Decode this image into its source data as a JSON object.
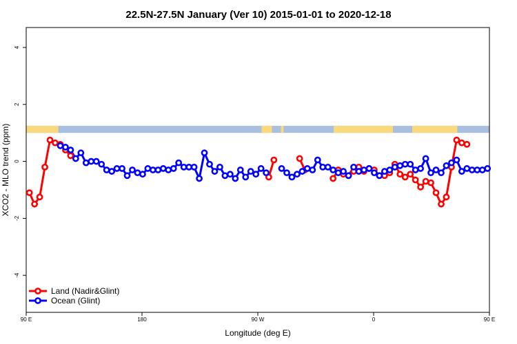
{
  "chart_data": {
    "type": "line",
    "title": "22.5N-27.5N January (Ver 10)   2015-01-01 to 2020-12-18",
    "xlabel": "Longitude (deg E)",
    "ylabel": "XCO2 - MLO trend (ppm)",
    "xlim": [
      90,
      450
    ],
    "ylim": [
      -5.3,
      4.7
    ],
    "x_ticks": [
      {
        "value": 90,
        "label": "90 E"
      },
      {
        "value": 180,
        "label": "180"
      },
      {
        "value": 270,
        "label": "90 W"
      },
      {
        "value": 360,
        "label": "0"
      },
      {
        "value": 450,
        "label": "90 E"
      }
    ],
    "y_ticks": [
      {
        "value": -4,
        "label": "-4"
      },
      {
        "value": -2,
        "label": "-2"
      },
      {
        "value": 0,
        "label": "0"
      },
      {
        "value": 2,
        "label": "2"
      },
      {
        "value": 4,
        "label": "4"
      }
    ],
    "grid": false,
    "legend_position": "bottom-left",
    "land_ocean_band": {
      "y_range": [
        1.0,
        1.25
      ],
      "ocean_color": "#a9bfe0",
      "land_color": "#f9d97c",
      "land_segments": [
        [
          90,
          115
        ],
        [
          273,
          281
        ],
        [
          288,
          290
        ],
        [
          329,
          375
        ],
        [
          390,
          425
        ]
      ]
    },
    "series": [
      {
        "name": "Land (Nadir&Glint)",
        "color": "#ff0000",
        "x": [
          92.5,
          96.5,
          100.5,
          104.5,
          108.5,
          112.5,
          116.5,
          120.5,
          124.5,
          278.5,
          282.5,
          302.5,
          306.5,
          328.5,
          332.5,
          336.5,
          340.5,
          344.5,
          348.5,
          352.5,
          356.5,
          360.5,
          364.5,
          368.5,
          372.5,
          376.5,
          380.5,
          384.5,
          388.5,
          392.5,
          396.5,
          400.5,
          404.5,
          408.5,
          412.5,
          416.5,
          420.5,
          424.5,
          428.5,
          432.5
        ],
        "values": [
          -1.1,
          -1.5,
          -1.25,
          -0.2,
          0.75,
          0.65,
          0.6,
          0.4,
          0.2,
          -0.55,
          0.05,
          0.1,
          -0.3,
          -0.6,
          -0.3,
          -0.45,
          -0.5,
          -0.35,
          -0.2,
          -0.35,
          -0.25,
          -0.3,
          -0.5,
          -0.5,
          -0.4,
          -0.1,
          -0.45,
          -0.55,
          -0.45,
          -0.65,
          -0.9,
          -0.7,
          -0.75,
          -1.1,
          -1.5,
          -1.25,
          -0.2,
          0.75,
          0.65,
          0.6
        ]
      },
      {
        "name": "Ocean (Glint)",
        "color": "#0000ff",
        "x": [
          116.5,
          120.5,
          124.5,
          128.5,
          132.5,
          136.5,
          140.5,
          144.5,
          148.5,
          152.5,
          156.5,
          160.5,
          164.5,
          168.5,
          172.5,
          176.5,
          180.5,
          184.5,
          188.5,
          192.5,
          196.5,
          200.5,
          204.5,
          208.5,
          212.5,
          216.5,
          220.5,
          224.5,
          228.5,
          232.5,
          236.5,
          240.5,
          244.5,
          248.5,
          252.5,
          256.5,
          260.5,
          264.5,
          268.5,
          272.5,
          276.5,
          288.5,
          292.5,
          296.5,
          300.5,
          304.5,
          308.5,
          312.5,
          316.5,
          320.5,
          324.5,
          328.5,
          332.5,
          336.5,
          340.5,
          344.5,
          348.5,
          352.5,
          356.5,
          360.5,
          364.5,
          368.5,
          372.5,
          376.5,
          380.5,
          384.5,
          388.5,
          392.5,
          396.5,
          400.5,
          404.5,
          408.5,
          412.5,
          416.5,
          420.5,
          424.5,
          428.5,
          432.5,
          436.5,
          440.5,
          444.5,
          448.5
        ],
        "values": [
          0.55,
          0.5,
          0.4,
          0.1,
          0.3,
          -0.05,
          0.0,
          0.0,
          -0.1,
          -0.3,
          -0.35,
          -0.25,
          -0.25,
          -0.5,
          -0.3,
          -0.4,
          -0.45,
          -0.25,
          -0.3,
          -0.3,
          -0.25,
          -0.3,
          -0.25,
          -0.05,
          -0.2,
          -0.2,
          -0.2,
          -0.6,
          0.3,
          -0.1,
          -0.35,
          -0.2,
          -0.5,
          -0.45,
          -0.6,
          -0.3,
          -0.55,
          -0.35,
          -0.45,
          -0.25,
          -0.4,
          -0.25,
          -0.4,
          -0.55,
          -0.45,
          -0.35,
          -0.25,
          -0.3,
          0.05,
          -0.2,
          -0.2,
          -0.3,
          -0.4,
          -0.35,
          -0.5,
          -0.2,
          -0.35,
          -0.3,
          -0.25,
          -0.4,
          -0.5,
          -0.35,
          -0.3,
          -0.2,
          -0.15,
          -0.1,
          -0.1,
          -0.3,
          -0.25,
          0.1,
          -0.4,
          -0.3,
          -0.4,
          -0.15,
          -0.05,
          0.05,
          -0.35,
          -0.25,
          -0.3,
          -0.3,
          -0.3,
          -0.25
        ]
      }
    ]
  }
}
